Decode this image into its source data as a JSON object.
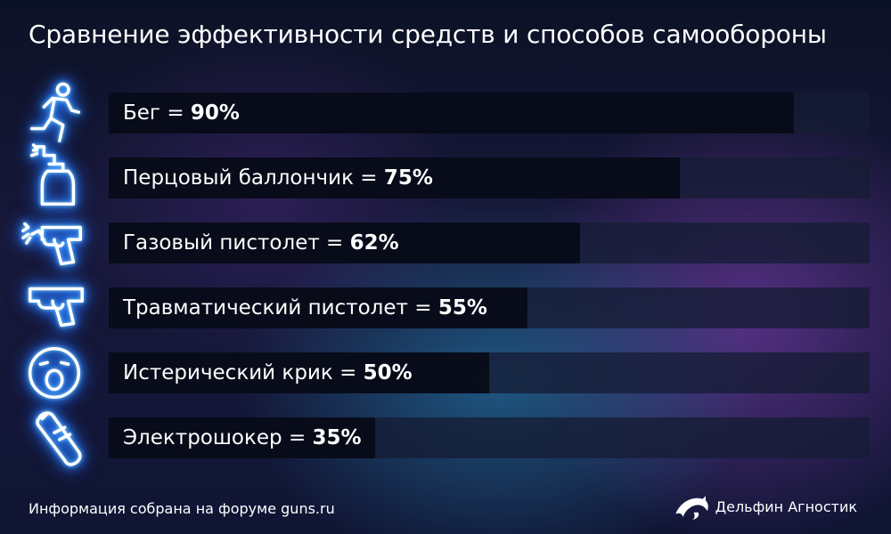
{
  "title": "Сравнение эффективности средств и способов самообороны",
  "chart_data": {
    "type": "bar",
    "orientation": "horizontal",
    "title": "Сравнение эффективности средств и способов самообороны",
    "categories": [
      "Бег",
      "Перцовый баллончик",
      "Газовый пистолет",
      "Травматический пистолет",
      "Истерический крик",
      "Электрошокер"
    ],
    "values": [
      90,
      75,
      62,
      55,
      50,
      35
    ],
    "value_labels": [
      "90%",
      "75%",
      "62%",
      "55%",
      "50%",
      "35%"
    ],
    "xlim": [
      0,
      100
    ],
    "unit": "%",
    "icons": [
      "running-man-icon",
      "pepper-spray-icon",
      "gas-pistol-icon",
      "pistol-icon",
      "screaming-face-icon",
      "stun-gun-icon"
    ]
  },
  "footer": {
    "source": "Информация собрана на форуме guns.ru",
    "brand": "Дельфин Агностик",
    "brand_icon": "dolphin-icon"
  }
}
